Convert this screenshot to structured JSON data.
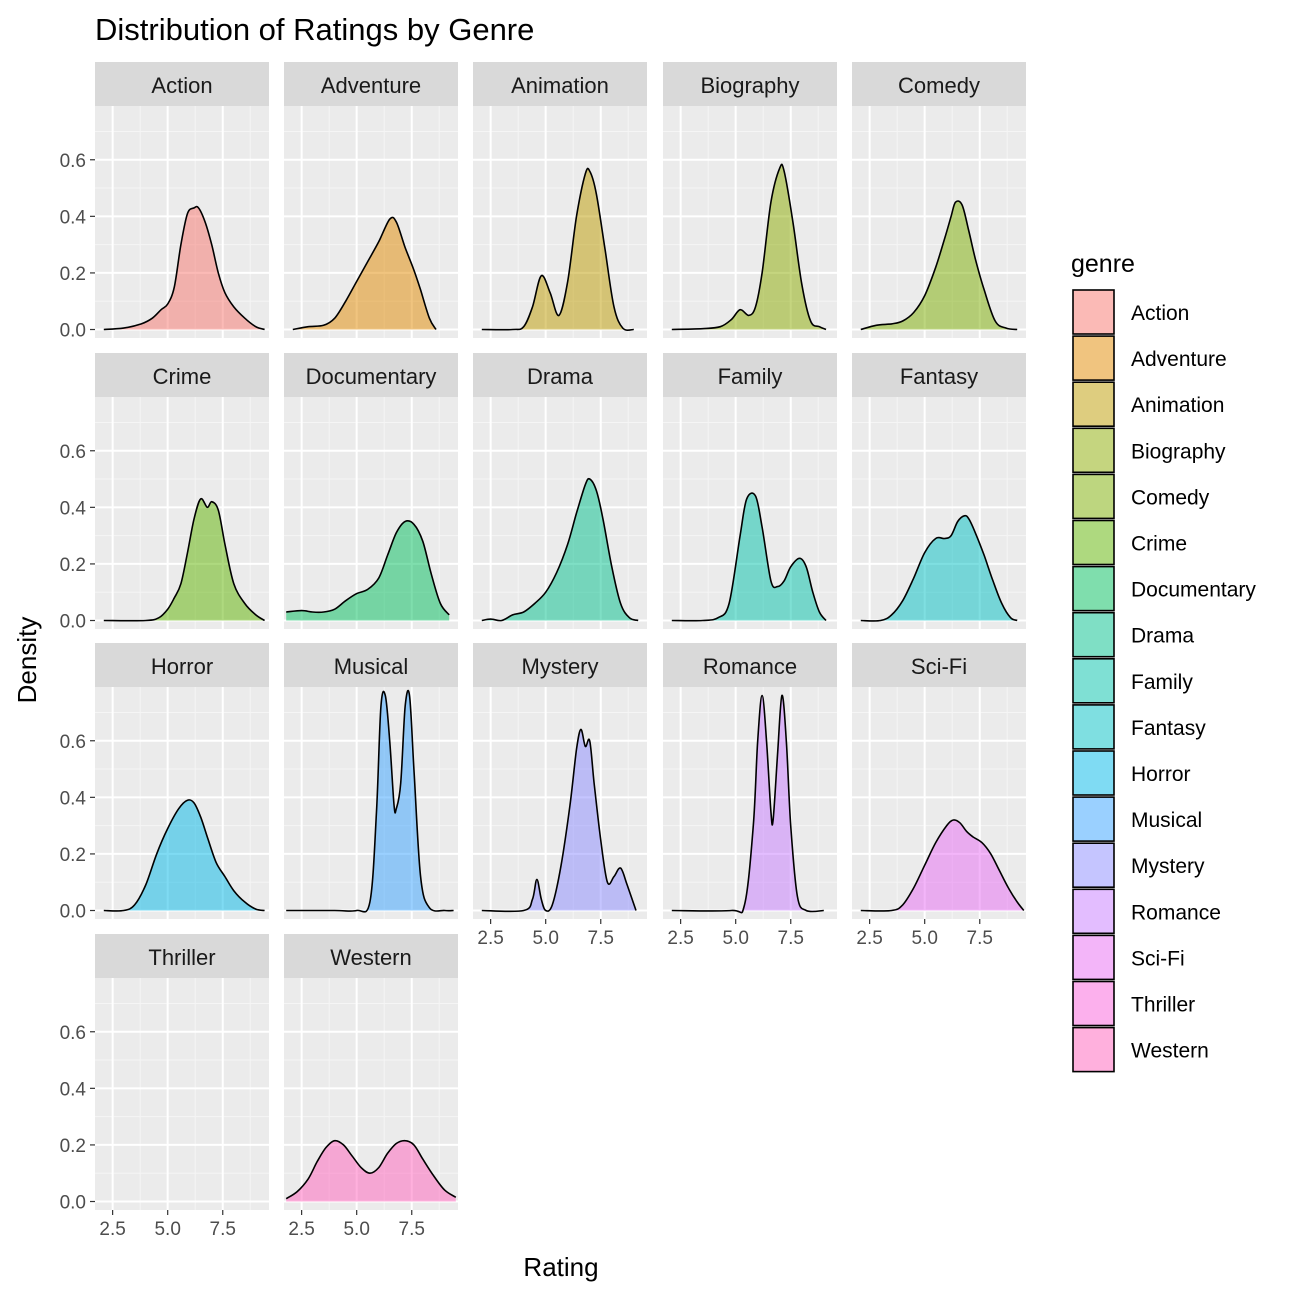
{
  "chart_data": {
    "type": "area",
    "title": "Distribution of Ratings by Genre",
    "xlabel": "Rating",
    "ylabel": "Density",
    "xlim": [
      1.7,
      9.6
    ],
    "ylim": [
      -0.03,
      0.79
    ],
    "x_ticks": [
      2.5,
      5.0,
      7.5
    ],
    "x_tick_labels": [
      "2.5",
      "5.0",
      "7.5"
    ],
    "y_ticks": [
      0.0,
      0.2,
      0.4,
      0.6
    ],
    "y_tick_labels": [
      "0.0",
      "0.2",
      "0.4",
      "0.6"
    ],
    "grid": true,
    "facet_columns": 5,
    "legend": {
      "title": "genre",
      "position": "right",
      "entries": [
        "Action",
        "Adventure",
        "Animation",
        "Biography",
        "Comedy",
        "Crime",
        "Documentary",
        "Drama",
        "Family",
        "Fantasy",
        "Horror",
        "Musical",
        "Mystery",
        "Romance",
        "Sci-Fi",
        "Thriller",
        "Western"
      ]
    },
    "fill_alpha": 0.5,
    "series": [
      {
        "name": "Action",
        "color": "#F8766D",
        "x": [
          2.1,
          3.0,
          3.8,
          4.3,
          4.7,
          5.0,
          5.3,
          5.6,
          5.9,
          6.2,
          6.4,
          6.7,
          7.0,
          7.3,
          7.6,
          8.0,
          8.5,
          9.0,
          9.4
        ],
        "y": [
          0.0,
          0.005,
          0.02,
          0.04,
          0.07,
          0.09,
          0.15,
          0.3,
          0.41,
          0.43,
          0.43,
          0.38,
          0.3,
          0.2,
          0.13,
          0.08,
          0.04,
          0.01,
          0.0
        ]
      },
      {
        "name": "Adventure",
        "color": "#E18A00",
        "x": [
          2.1,
          2.8,
          3.5,
          4.0,
          4.5,
          5.0,
          5.5,
          6.0,
          6.5,
          6.8,
          7.2,
          7.6,
          7.9,
          8.3,
          8.6
        ],
        "y": [
          0.0,
          0.01,
          0.015,
          0.04,
          0.1,
          0.17,
          0.24,
          0.31,
          0.39,
          0.38,
          0.29,
          0.21,
          0.14,
          0.04,
          0.0
        ]
      },
      {
        "name": "Animation",
        "color": "#BE9C00",
        "x": [
          2.1,
          3.5,
          4.0,
          4.4,
          4.8,
          5.2,
          5.6,
          6.0,
          6.4,
          6.8,
          7.0,
          7.3,
          7.7,
          8.1,
          8.5,
          9.0
        ],
        "y": [
          0.0,
          0.0,
          0.01,
          0.08,
          0.19,
          0.13,
          0.05,
          0.17,
          0.4,
          0.55,
          0.56,
          0.48,
          0.28,
          0.08,
          0.005,
          0.0
        ]
      },
      {
        "name": "Biography",
        "color": "#8CAB00",
        "x": [
          2.1,
          3.5,
          4.3,
          4.8,
          5.2,
          5.6,
          5.9,
          6.2,
          6.6,
          7.0,
          7.2,
          7.6,
          8.0,
          8.4,
          8.8,
          9.1
        ],
        "y": [
          0.0,
          0.003,
          0.01,
          0.035,
          0.07,
          0.05,
          0.08,
          0.2,
          0.45,
          0.57,
          0.56,
          0.38,
          0.16,
          0.03,
          0.01,
          0.0
        ]
      },
      {
        "name": "Comedy",
        "color": "#7CAE00",
        "x": [
          2.1,
          2.8,
          3.5,
          4.0,
          4.5,
          5.0,
          5.5,
          5.9,
          6.2,
          6.4,
          6.7,
          7.0,
          7.3,
          7.7,
          8.2,
          8.7,
          9.2
        ],
        "y": [
          0.0,
          0.015,
          0.02,
          0.03,
          0.06,
          0.12,
          0.22,
          0.32,
          0.4,
          0.45,
          0.44,
          0.35,
          0.25,
          0.14,
          0.03,
          0.005,
          0.0
        ]
      },
      {
        "name": "Crime",
        "color": "#5EB300",
        "x": [
          2.1,
          4.0,
          4.6,
          5.0,
          5.3,
          5.6,
          5.9,
          6.2,
          6.5,
          6.8,
          7.0,
          7.3,
          7.6,
          8.0,
          8.5,
          9.0,
          9.4
        ],
        "y": [
          0.0,
          0.0,
          0.01,
          0.04,
          0.08,
          0.13,
          0.24,
          0.36,
          0.43,
          0.4,
          0.42,
          0.39,
          0.27,
          0.13,
          0.06,
          0.02,
          0.0
        ]
      },
      {
        "name": "Documentary",
        "color": "#00BD5C",
        "x": [
          1.8,
          2.5,
          3.0,
          3.5,
          4.0,
          4.5,
          5.0,
          5.5,
          6.0,
          6.4,
          6.8,
          7.2,
          7.6,
          8.0,
          8.4,
          8.8,
          9.2
        ],
        "y": [
          0.03,
          0.035,
          0.03,
          0.03,
          0.04,
          0.07,
          0.095,
          0.11,
          0.15,
          0.23,
          0.31,
          0.35,
          0.34,
          0.28,
          0.16,
          0.06,
          0.02
        ]
      },
      {
        "name": "Drama",
        "color": "#00C08B",
        "x": [
          2.1,
          2.5,
          3.0,
          3.5,
          4.0,
          4.5,
          5.0,
          5.5,
          6.0,
          6.4,
          6.8,
          7.0,
          7.3,
          7.6,
          8.0,
          8.4,
          8.8,
          9.2
        ],
        "y": [
          0.0,
          0.005,
          0.0,
          0.02,
          0.03,
          0.06,
          0.1,
          0.17,
          0.27,
          0.38,
          0.48,
          0.5,
          0.46,
          0.36,
          0.19,
          0.06,
          0.01,
          0.0
        ]
      },
      {
        "name": "Family",
        "color": "#00C1A9",
        "x": [
          2.1,
          3.5,
          4.2,
          4.7,
          5.2,
          5.5,
          5.9,
          6.2,
          6.6,
          6.9,
          7.2,
          7.5,
          7.9,
          8.2,
          8.5,
          8.8,
          9.1
        ],
        "y": [
          0.0,
          0.0,
          0.01,
          0.06,
          0.3,
          0.43,
          0.44,
          0.33,
          0.14,
          0.12,
          0.14,
          0.19,
          0.22,
          0.19,
          0.1,
          0.03,
          0.0
        ]
      },
      {
        "name": "Fantasy",
        "color": "#00BFC4",
        "x": [
          2.1,
          3.0,
          3.5,
          4.0,
          4.5,
          5.0,
          5.5,
          5.9,
          6.2,
          6.5,
          6.8,
          7.0,
          7.3,
          7.7,
          8.1,
          8.5,
          8.9,
          9.2
        ],
        "y": [
          0.0,
          0.0,
          0.02,
          0.07,
          0.15,
          0.24,
          0.29,
          0.29,
          0.3,
          0.35,
          0.37,
          0.36,
          0.31,
          0.23,
          0.14,
          0.06,
          0.01,
          0.0
        ]
      },
      {
        "name": "Horror",
        "color": "#00B8E7",
        "x": [
          2.1,
          3.0,
          3.5,
          4.0,
          4.5,
          5.0,
          5.5,
          5.9,
          6.2,
          6.5,
          6.8,
          7.2,
          7.6,
          8.0,
          8.5,
          9.0,
          9.4
        ],
        "y": [
          0.0,
          0.0,
          0.02,
          0.09,
          0.2,
          0.29,
          0.36,
          0.39,
          0.38,
          0.33,
          0.26,
          0.17,
          0.12,
          0.07,
          0.03,
          0.005,
          0.0
        ]
      },
      {
        "name": "Musical",
        "color": "#35A2FF",
        "x": [
          1.8,
          4.0,
          5.0,
          5.6,
          5.9,
          6.1,
          6.3,
          6.5,
          6.7,
          6.8,
          7.0,
          7.2,
          7.4,
          7.6,
          7.9,
          8.3,
          9.0,
          9.4
        ],
        "y": [
          0.0,
          0.0,
          0.0,
          0.03,
          0.35,
          0.72,
          0.76,
          0.6,
          0.37,
          0.36,
          0.45,
          0.72,
          0.76,
          0.5,
          0.12,
          0.01,
          0.0,
          0.0
        ]
      },
      {
        "name": "Mystery",
        "color": "#8C8CFF",
        "x": [
          2.1,
          4.0,
          4.4,
          4.6,
          4.8,
          5.0,
          5.3,
          5.7,
          6.1,
          6.4,
          6.6,
          6.8,
          7.0,
          7.2,
          7.5,
          7.8,
          8.1,
          8.4,
          8.7,
          9.1
        ],
        "y": [
          0.0,
          0.0,
          0.04,
          0.11,
          0.04,
          0.0,
          0.02,
          0.16,
          0.37,
          0.57,
          0.64,
          0.58,
          0.6,
          0.45,
          0.25,
          0.1,
          0.12,
          0.15,
          0.09,
          0.0
        ]
      },
      {
        "name": "Romance",
        "color": "#C77CFF",
        "x": [
          2.1,
          4.8,
          5.4,
          5.8,
          6.0,
          6.2,
          6.4,
          6.6,
          6.7,
          6.9,
          7.1,
          7.3,
          7.5,
          7.8,
          8.2,
          9.0
        ],
        "y": [
          0.0,
          0.0,
          0.02,
          0.3,
          0.6,
          0.76,
          0.6,
          0.35,
          0.32,
          0.55,
          0.76,
          0.6,
          0.3,
          0.05,
          0.0,
          0.0
        ]
      },
      {
        "name": "Sci-Fi",
        "color": "#E76BF3",
        "x": [
          2.1,
          3.5,
          4.0,
          4.5,
          5.0,
          5.5,
          6.0,
          6.3,
          6.6,
          6.9,
          7.2,
          7.6,
          8.0,
          8.4,
          8.8,
          9.2,
          9.5
        ],
        "y": [
          0.0,
          0.0,
          0.02,
          0.08,
          0.16,
          0.24,
          0.3,
          0.32,
          0.31,
          0.28,
          0.26,
          0.24,
          0.2,
          0.14,
          0.08,
          0.03,
          0.0
        ]
      },
      {
        "name": "Thriller",
        "color": "#FA62DB",
        "x": [],
        "y": []
      },
      {
        "name": "Western",
        "color": "#FF62BC",
        "x": [
          1.8,
          2.3,
          2.8,
          3.2,
          3.6,
          4.0,
          4.4,
          4.8,
          5.2,
          5.6,
          6.0,
          6.4,
          6.8,
          7.2,
          7.6,
          8.0,
          8.5,
          9.0,
          9.5
        ],
        "y": [
          0.01,
          0.035,
          0.08,
          0.14,
          0.19,
          0.215,
          0.2,
          0.16,
          0.12,
          0.1,
          0.12,
          0.17,
          0.205,
          0.215,
          0.2,
          0.15,
          0.09,
          0.04,
          0.015
        ]
      }
    ]
  }
}
